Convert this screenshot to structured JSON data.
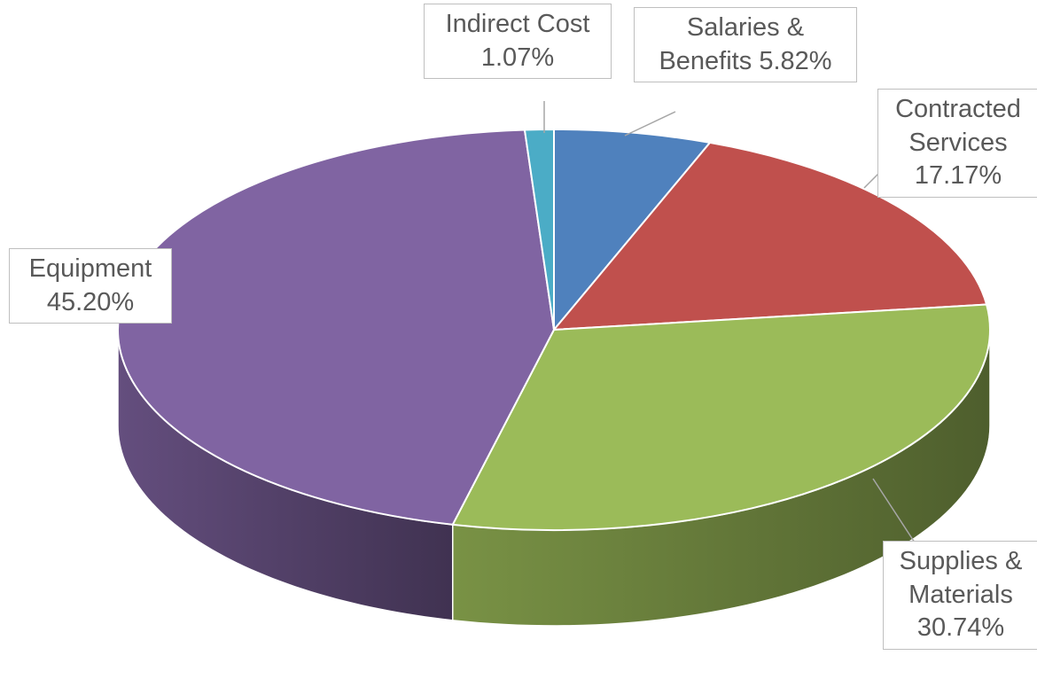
{
  "chart_data": {
    "type": "pie3d",
    "categories": [
      "Salaries & Benefits",
      "Contracted Services",
      "Supplies & Materials",
      "Equipment",
      "Indirect Cost"
    ],
    "values": [
      5.82,
      17.17,
      30.74,
      45.2,
      1.07
    ],
    "value_labels": [
      "5.82%",
      "17.17%",
      "30.74%",
      "45.20%",
      "1.07%"
    ],
    "colors": [
      "#4f81bd",
      "#c0504d",
      "#9bbb59",
      "#8064a2",
      "#4bacc6"
    ]
  }
}
